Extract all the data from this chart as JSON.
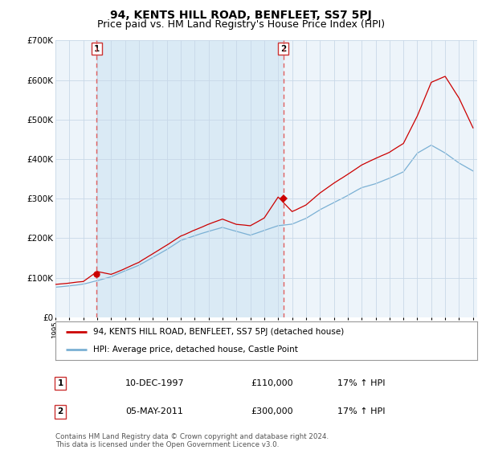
{
  "title": "94, KENTS HILL ROAD, BENFLEET, SS7 5PJ",
  "subtitle": "Price paid vs. HM Land Registry's House Price Index (HPI)",
  "legend_line1": "94, KENTS HILL ROAD, BENFLEET, SS7 5PJ (detached house)",
  "legend_line2": "HPI: Average price, detached house, Castle Point",
  "purchase1_label": "1",
  "purchase1_date": "10-DEC-1997",
  "purchase1_price": "£110,000",
  "purchase1_hpi": "17% ↑ HPI",
  "purchase1_year": 1997.95,
  "purchase1_value": 110000,
  "purchase2_label": "2",
  "purchase2_date": "05-MAY-2011",
  "purchase2_price": "£300,000",
  "purchase2_hpi": "17% ↑ HPI",
  "purchase2_year": 2011.37,
  "purchase2_value": 300000,
  "footer": "Contains HM Land Registry data © Crown copyright and database right 2024.\nThis data is licensed under the Open Government Licence v3.0.",
  "ylim": [
    0,
    700000
  ],
  "yticks": [
    0,
    100000,
    200000,
    300000,
    400000,
    500000,
    600000,
    700000
  ],
  "ytick_labels": [
    "£0",
    "£100K",
    "£200K",
    "£300K",
    "£400K",
    "£500K",
    "£600K",
    "£700K"
  ],
  "red_color": "#cc0000",
  "blue_color": "#7ab0d4",
  "vline_color": "#e06060",
  "grid_color": "#c8d8e8",
  "bg_color": "#ffffff",
  "fill_color": "#daeaf5",
  "title_fontsize": 10,
  "subtitle_fontsize": 9
}
